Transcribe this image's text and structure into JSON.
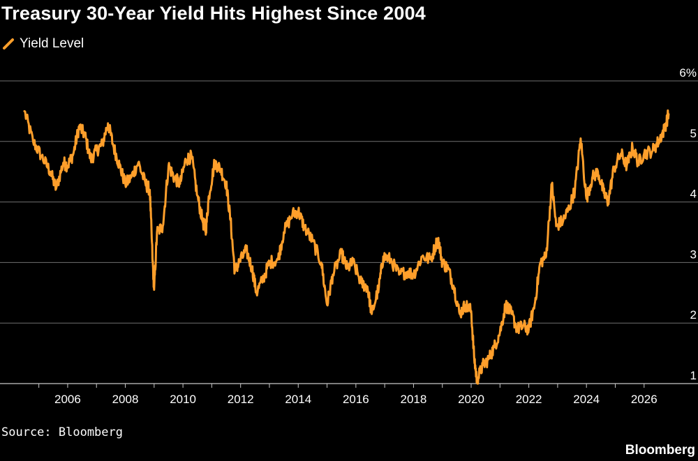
{
  "title": "Treasury 30-Year Yield Hits Highest Since 2004",
  "source": "Source: Bloomberg",
  "brand": "Bloomberg",
  "chart_data": {
    "type": "line",
    "title": "Treasury 30-Year Yield Hits Highest Since 2004",
    "xlabel": "",
    "ylabel": "",
    "x_ticks": [
      2006,
      2008,
      2010,
      2012,
      2014,
      2016,
      2018,
      2020,
      2022,
      2024,
      2026
    ],
    "y_ticks": [
      {
        "value": 1,
        "label": "1"
      },
      {
        "value": 2,
        "label": "2"
      },
      {
        "value": 3,
        "label": "3"
      },
      {
        "value": 4,
        "label": "4"
      },
      {
        "value": 5,
        "label": "5"
      },
      {
        "value": 6,
        "label": "6%"
      }
    ],
    "xlim": [
      2004.5,
      2026.95
    ],
    "ylim": [
      1.0,
      6.0
    ],
    "grid": "horizontal",
    "legend_position": "top-left",
    "colors": {
      "line": "#ff9f2b",
      "grid": "#707070",
      "background": "#000000"
    },
    "series": [
      {
        "name": "Yield Level",
        "points": [
          [
            2004.5,
            5.5
          ],
          [
            2004.8,
            5.0
          ],
          [
            2005.1,
            4.75
          ],
          [
            2005.4,
            4.5
          ],
          [
            2005.6,
            4.22
          ],
          [
            2005.85,
            4.65
          ],
          [
            2006.0,
            4.6
          ],
          [
            2006.2,
            4.8
          ],
          [
            2006.4,
            5.25
          ],
          [
            2006.6,
            5.1
          ],
          [
            2006.8,
            4.7
          ],
          [
            2007.0,
            4.85
          ],
          [
            2007.2,
            4.95
          ],
          [
            2007.4,
            5.3
          ],
          [
            2007.6,
            4.9
          ],
          [
            2007.8,
            4.6
          ],
          [
            2008.0,
            4.3
          ],
          [
            2008.2,
            4.4
          ],
          [
            2008.45,
            4.65
          ],
          [
            2008.7,
            4.3
          ],
          [
            2008.85,
            4.2
          ],
          [
            2008.95,
            3.0
          ],
          [
            2009.0,
            2.55
          ],
          [
            2009.1,
            3.5
          ],
          [
            2009.3,
            3.6
          ],
          [
            2009.5,
            4.6
          ],
          [
            2009.7,
            4.4
          ],
          [
            2009.9,
            4.3
          ],
          [
            2010.1,
            4.7
          ],
          [
            2010.3,
            4.75
          ],
          [
            2010.5,
            4.1
          ],
          [
            2010.7,
            3.65
          ],
          [
            2010.8,
            3.55
          ],
          [
            2010.9,
            4.1
          ],
          [
            2011.1,
            4.65
          ],
          [
            2011.3,
            4.55
          ],
          [
            2011.5,
            4.3
          ],
          [
            2011.65,
            3.7
          ],
          [
            2011.8,
            2.85
          ],
          [
            2011.95,
            3.0
          ],
          [
            2012.2,
            3.2
          ],
          [
            2012.4,
            2.9
          ],
          [
            2012.55,
            2.5
          ],
          [
            2012.8,
            2.75
          ],
          [
            2013.0,
            3.0
          ],
          [
            2013.3,
            3.05
          ],
          [
            2013.5,
            3.5
          ],
          [
            2013.8,
            3.8
          ],
          [
            2014.0,
            3.85
          ],
          [
            2014.2,
            3.6
          ],
          [
            2014.5,
            3.35
          ],
          [
            2014.8,
            3.0
          ],
          [
            2015.0,
            2.3
          ],
          [
            2015.2,
            2.8
          ],
          [
            2015.5,
            3.15
          ],
          [
            2015.7,
            2.9
          ],
          [
            2015.9,
            3.0
          ],
          [
            2016.2,
            2.65
          ],
          [
            2016.4,
            2.6
          ],
          [
            2016.55,
            2.15
          ],
          [
            2016.8,
            2.6
          ],
          [
            2016.95,
            3.1
          ],
          [
            2017.2,
            3.05
          ],
          [
            2017.5,
            2.8
          ],
          [
            2017.8,
            2.85
          ],
          [
            2018.0,
            2.8
          ],
          [
            2018.3,
            3.1
          ],
          [
            2018.6,
            3.05
          ],
          [
            2018.85,
            3.4
          ],
          [
            2019.0,
            3.0
          ],
          [
            2019.2,
            2.9
          ],
          [
            2019.4,
            2.6
          ],
          [
            2019.6,
            2.15
          ],
          [
            2019.8,
            2.3
          ],
          [
            2020.0,
            2.2
          ],
          [
            2020.1,
            1.45
          ],
          [
            2020.2,
            1.05
          ],
          [
            2020.4,
            1.3
          ],
          [
            2020.6,
            1.4
          ],
          [
            2020.8,
            1.6
          ],
          [
            2021.0,
            1.85
          ],
          [
            2021.2,
            2.3
          ],
          [
            2021.4,
            2.15
          ],
          [
            2021.6,
            1.9
          ],
          [
            2021.8,
            1.95
          ],
          [
            2022.0,
            1.9
          ],
          [
            2022.2,
            2.3
          ],
          [
            2022.4,
            3.0
          ],
          [
            2022.6,
            3.1
          ],
          [
            2022.8,
            4.3
          ],
          [
            2022.95,
            3.6
          ],
          [
            2023.2,
            3.7
          ],
          [
            2023.4,
            3.9
          ],
          [
            2023.6,
            4.2
          ],
          [
            2023.8,
            5.05
          ],
          [
            2024.0,
            4.05
          ],
          [
            2024.2,
            4.4
          ],
          [
            2024.4,
            4.5
          ],
          [
            2024.6,
            4.15
          ],
          [
            2024.75,
            4.0
          ],
          [
            2024.95,
            4.55
          ],
          [
            2025.2,
            4.8
          ],
          [
            2025.4,
            4.6
          ],
          [
            2025.6,
            4.9
          ],
          [
            2025.8,
            4.65
          ],
          [
            2026.0,
            4.8
          ],
          [
            2026.3,
            4.85
          ],
          [
            2026.5,
            5.0
          ],
          [
            2026.7,
            5.2
          ],
          [
            2026.85,
            5.45
          ]
        ]
      }
    ]
  }
}
